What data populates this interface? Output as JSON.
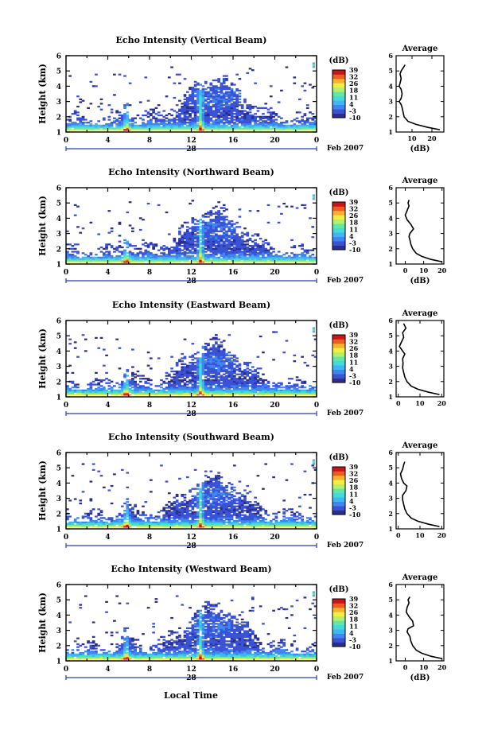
{
  "figure": {
    "date_label": "Feb 2007",
    "day_label": "28",
    "bottom_xlabel": "Local Time",
    "colorbar_unit": "(dB)",
    "colorbar_ticks": [
      "39",
      "32",
      "26",
      "18",
      "11",
      "4",
      "-3",
      "-10"
    ],
    "colors": [
      "#2b2e8f",
      "#3a52d6",
      "#3f86f0",
      "#3fb7f2",
      "#45dbd8",
      "#64e7a6",
      "#b8ef6a",
      "#f2ee44",
      "#f7b12c",
      "#f05b20",
      "#c8141b"
    ]
  },
  "chart_data": [
    {
      "type": "heatmap",
      "title": "Echo Intensity (Vertical Beam)",
      "xlabel": "",
      "ylabel": "Height (km)",
      "x_ticks": [
        "0",
        "4",
        "8",
        "12",
        "16",
        "20",
        "0"
      ],
      "xlim": [
        0,
        24
      ],
      "ylim": [
        1,
        6
      ],
      "y_ticks": [
        "1",
        "2",
        "3",
        "4",
        "5",
        "6"
      ],
      "color_range_db": [
        -10,
        39
      ],
      "profile": {
        "title": "Average",
        "xlabel": "(dB)",
        "x_ticks": [
          "10",
          "20"
        ],
        "xlim": [
          2,
          26
        ],
        "heights_km": [
          1.15,
          1.3,
          1.5,
          1.7,
          2.0,
          2.3,
          2.6,
          2.8,
          3.0,
          3.2,
          3.5,
          3.8,
          4.0,
          4.2,
          4.5,
          4.8,
          5.0,
          5.2,
          5.4
        ],
        "values_db": [
          24,
          18,
          12,
          8,
          6,
          5.5,
          5,
          4.5,
          3.5,
          4.5,
          5,
          4.5,
          3.5,
          4,
          4.5,
          4,
          4.5,
          5.5,
          6.5
        ]
      }
    },
    {
      "type": "heatmap",
      "title": "Echo Intensity (Northward Beam)",
      "xlabel": "",
      "ylabel": "Height (km)",
      "x_ticks": [
        "0",
        "4",
        "8",
        "12",
        "16",
        "20",
        "0"
      ],
      "xlim": [
        0,
        24
      ],
      "ylim": [
        1,
        6
      ],
      "y_ticks": [
        "1",
        "2",
        "3",
        "4",
        "5",
        "6"
      ],
      "color_range_db": [
        -10,
        39
      ],
      "profile": {
        "title": "Average",
        "xlabel": "(dB)",
        "x_ticks": [
          "0",
          "10",
          "20"
        ],
        "xlim": [
          -5,
          21
        ],
        "heights_km": [
          1.15,
          1.3,
          1.5,
          1.7,
          2.0,
          2.3,
          2.6,
          2.8,
          3.0,
          3.3,
          3.6,
          3.9,
          4.2,
          4.5,
          4.8,
          5.0,
          5.2
        ],
        "values_db": [
          20,
          14,
          9,
          6,
          4,
          3,
          2.5,
          2,
          2.5,
          4.5,
          3,
          1,
          0,
          1,
          2,
          1.5,
          2
        ]
      }
    },
    {
      "type": "heatmap",
      "title": "Echo Intensity (Eastward Beam)",
      "xlabel": "",
      "ylabel": "Height (km)",
      "x_ticks": [
        "0",
        "4",
        "8",
        "12",
        "16",
        "20",
        "0"
      ],
      "xlim": [
        0,
        24
      ],
      "ylim": [
        1,
        6
      ],
      "y_ticks": [
        "1",
        "2",
        "3",
        "4",
        "5",
        "6"
      ],
      "color_range_db": [
        -10,
        39
      ],
      "profile": {
        "title": "Average",
        "xlabel": "",
        "x_ticks": [
          "0",
          "10",
          "20"
        ],
        "xlim": [
          -1,
          21
        ],
        "heights_km": [
          1.15,
          1.3,
          1.5,
          1.7,
          2.0,
          2.3,
          2.6,
          2.9,
          3.2,
          3.5,
          3.8,
          4.0,
          4.3,
          4.6,
          4.9,
          5.2,
          5.5,
          5.8
        ],
        "values_db": [
          19,
          14,
          9,
          6,
          4,
          3,
          2.5,
          2,
          2.2,
          2,
          3,
          2,
          0.5,
          1.5,
          2.5,
          2,
          3.5,
          2.5
        ]
      }
    },
    {
      "type": "heatmap",
      "title": "Echo Intensity (Southward Beam)",
      "xlabel": "",
      "ylabel": "Height (km)",
      "x_ticks": [
        "0",
        "4",
        "8",
        "12",
        "16",
        "20",
        "0"
      ],
      "xlim": [
        0,
        24
      ],
      "ylim": [
        1,
        6
      ],
      "y_ticks": [
        "1",
        "2",
        "3",
        "4",
        "5",
        "6"
      ],
      "color_range_db": [
        -10,
        39
      ],
      "profile": {
        "title": "Average",
        "xlabel": "",
        "x_ticks": [
          "0",
          "10",
          "20"
        ],
        "xlim": [
          -1,
          21
        ],
        "heights_km": [
          1.15,
          1.3,
          1.5,
          1.7,
          2.0,
          2.3,
          2.6,
          2.9,
          3.2,
          3.5,
          3.8,
          4.0,
          4.3,
          4.6,
          4.9,
          5.2,
          5.4
        ],
        "values_db": [
          19,
          14,
          9,
          6,
          4,
          3,
          2.5,
          2,
          2,
          3.5,
          4,
          2.5,
          1.5,
          1,
          2,
          2.5,
          3
        ]
      }
    },
    {
      "type": "heatmap",
      "title": "Echo Intensity (Westward Beam)",
      "xlabel": "",
      "ylabel": "Height (km)",
      "x_ticks": [
        "0",
        "4",
        "8",
        "12",
        "16",
        "20",
        "0"
      ],
      "xlim": [
        0,
        24
      ],
      "ylim": [
        1,
        6
      ],
      "y_ticks": [
        "1",
        "2",
        "3",
        "4",
        "5",
        "6"
      ],
      "color_range_db": [
        -10,
        39
      ],
      "profile": {
        "title": "Average",
        "xlabel": "(dB)",
        "x_ticks": [
          "0",
          "10",
          "20"
        ],
        "xlim": [
          -5,
          21
        ],
        "heights_km": [
          1.15,
          1.3,
          1.5,
          1.7,
          2.0,
          2.3,
          2.6,
          2.9,
          3.1,
          3.3,
          3.6,
          3.9,
          4.2,
          4.5,
          4.8,
          5.0,
          5.2
        ],
        "values_db": [
          20,
          14,
          9,
          6,
          4,
          3,
          2.5,
          1,
          1.5,
          4.5,
          4,
          2,
          0.5,
          1,
          2,
          1.5,
          2.5
        ]
      }
    }
  ]
}
